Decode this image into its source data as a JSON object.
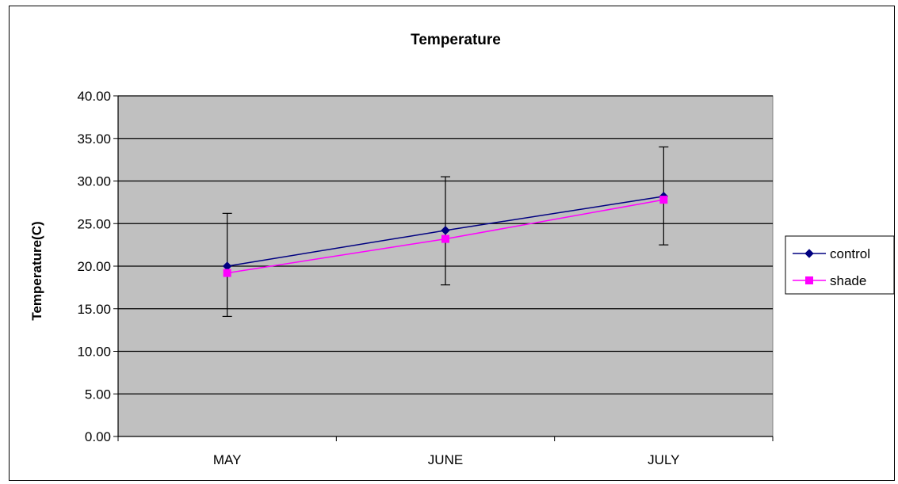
{
  "chart_data": {
    "type": "line",
    "title": "Temperature",
    "ylabel": "Temperature(C)",
    "xlabel": "",
    "categories": [
      "MAY",
      "JUNE",
      "JULY"
    ],
    "y_ticks": [
      "0.00",
      "5.00",
      "10.00",
      "15.00",
      "20.00",
      "25.00",
      "30.00",
      "35.00",
      "40.00"
    ],
    "ylim": [
      0,
      40
    ],
    "grid": true,
    "plot_background": "#C0C0C0",
    "legend_position": "right",
    "series": [
      {
        "name": "control",
        "values": [
          20.0,
          24.2,
          28.2
        ],
        "error_low": [
          14.1,
          17.8,
          22.5
        ],
        "error_high": [
          26.2,
          30.5,
          34.0
        ],
        "color": "#000080",
        "marker": "diamond"
      },
      {
        "name": "shade",
        "values": [
          19.2,
          23.2,
          27.8
        ],
        "color": "#FF00FF",
        "marker": "square"
      }
    ]
  }
}
